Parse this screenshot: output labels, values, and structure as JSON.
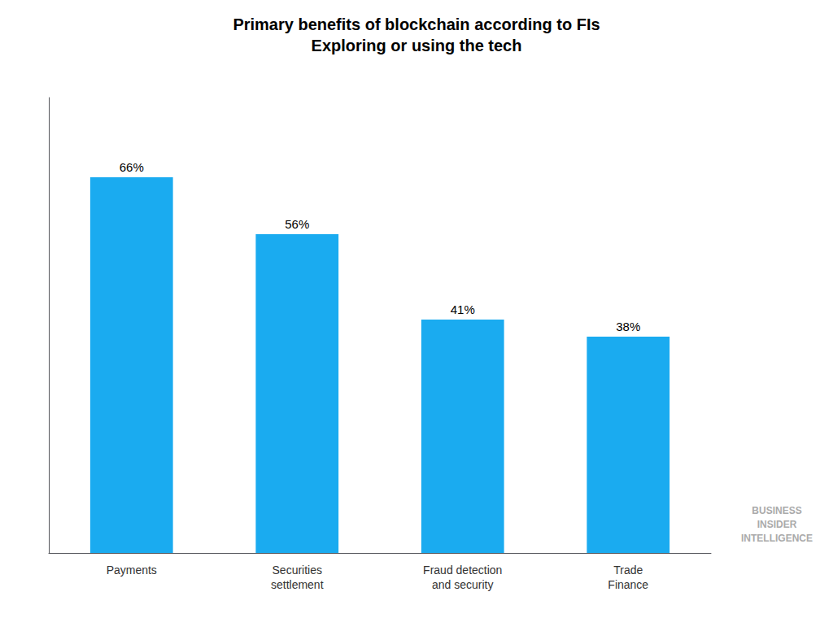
{
  "chart_data": {
    "type": "bar",
    "title": "Primary benefits of blockchain according to FIs",
    "subtitle": "Exploring or using the tech",
    "categories": [
      "Payments",
      "Securities\nsettlement",
      "Fraud detection\nand security",
      "Trade\nFinance"
    ],
    "values": [
      66,
      56,
      41,
      38
    ],
    "value_labels": [
      "66%",
      "56%",
      "41%",
      "38%"
    ],
    "data_labels": true,
    "color": "#1AABF0",
    "ylim": [
      0,
      80
    ],
    "tick_labels": "x",
    "grid": false,
    "annotation": "BUSINESS\nINSIDER\nINTELLIGENCE"
  }
}
